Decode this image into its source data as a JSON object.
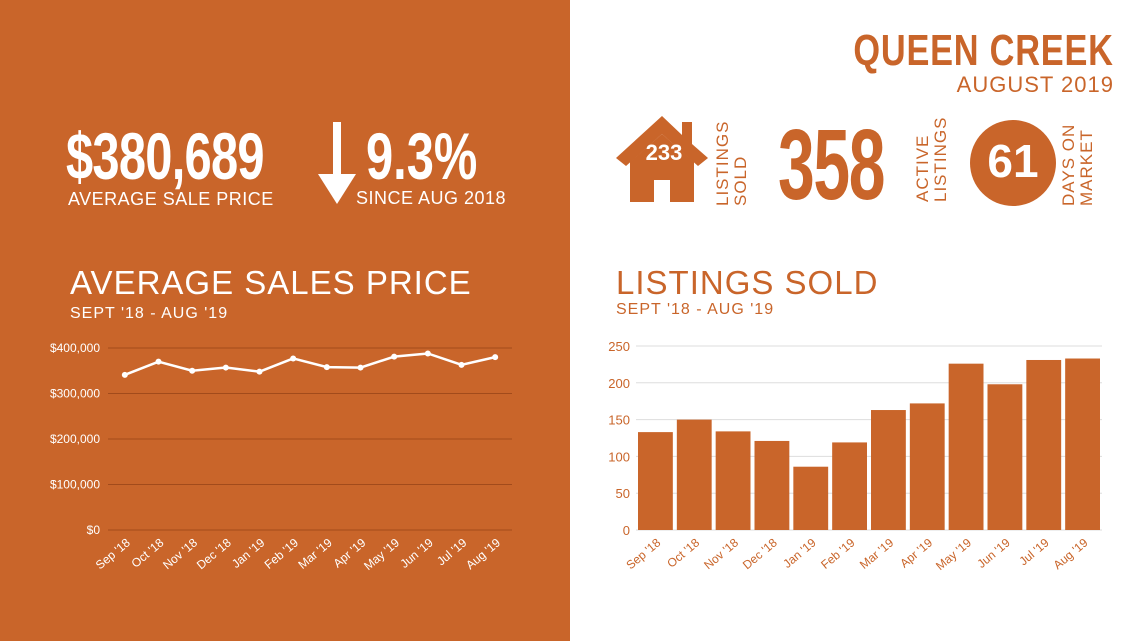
{
  "header": {
    "city": "QUEEN CREEK",
    "month": "AUGUST 2019"
  },
  "stats": {
    "average_price": "$380,689",
    "average_price_label": "AVERAGE  SALE PRICE",
    "change_value": "9.3%",
    "change_label": "SINCE AUG 2018",
    "change_direction": "down",
    "listings_sold": "233",
    "listings_sold_label": [
      "LISTINGS",
      "SOLD"
    ],
    "active_listings": "358",
    "active_listings_label": [
      "ACTIVE",
      "LISTINGS"
    ],
    "days_on_market": "61",
    "days_on_market_label": [
      "DAYS ON",
      "MARKET"
    ],
    "icons": [
      "down-arrow-icon",
      "house-icon"
    ]
  },
  "colors": {
    "accent": "#c9652a",
    "background": "#ffffff"
  },
  "chart_data": [
    {
      "type": "line",
      "title": "AVERAGE SALES PRICE",
      "subtitle": "SEPT '18 - AUG '19",
      "categories": [
        "Sep '18",
        "Oct '18",
        "Nov '18",
        "Dec '18",
        "Jan '19",
        "Feb '19",
        "Mar '19",
        "Apr '19",
        "May '19",
        "Jun '19",
        "Jul '19",
        "Aug '19"
      ],
      "values": [
        341000,
        370000,
        350000,
        357000,
        348000,
        377000,
        358000,
        357000,
        381000,
        388000,
        363000,
        380000
      ],
      "yticks": [
        "$0",
        "$100,000",
        "$200,000",
        "$300,000",
        "$400,000"
      ],
      "ylim": [
        0,
        400000
      ],
      "grid": true
    },
    {
      "type": "bar",
      "title": "LISTINGS SOLD",
      "subtitle": "SEPT '18 - AUG '19",
      "categories": [
        "Sep '18",
        "Oct '18",
        "Nov '18",
        "Dec '18",
        "Jan '19",
        "Feb '19",
        "Mar '19",
        "Apr '19",
        "May '19",
        "Jun '19",
        "Jul '19",
        "Aug '19"
      ],
      "values": [
        133,
        150,
        134,
        121,
        86,
        119,
        163,
        172,
        226,
        198,
        231,
        233
      ],
      "yticks": [
        "0",
        "50",
        "100",
        "150",
        "200",
        "250"
      ],
      "ylim": [
        0,
        250
      ],
      "grid": true
    }
  ]
}
